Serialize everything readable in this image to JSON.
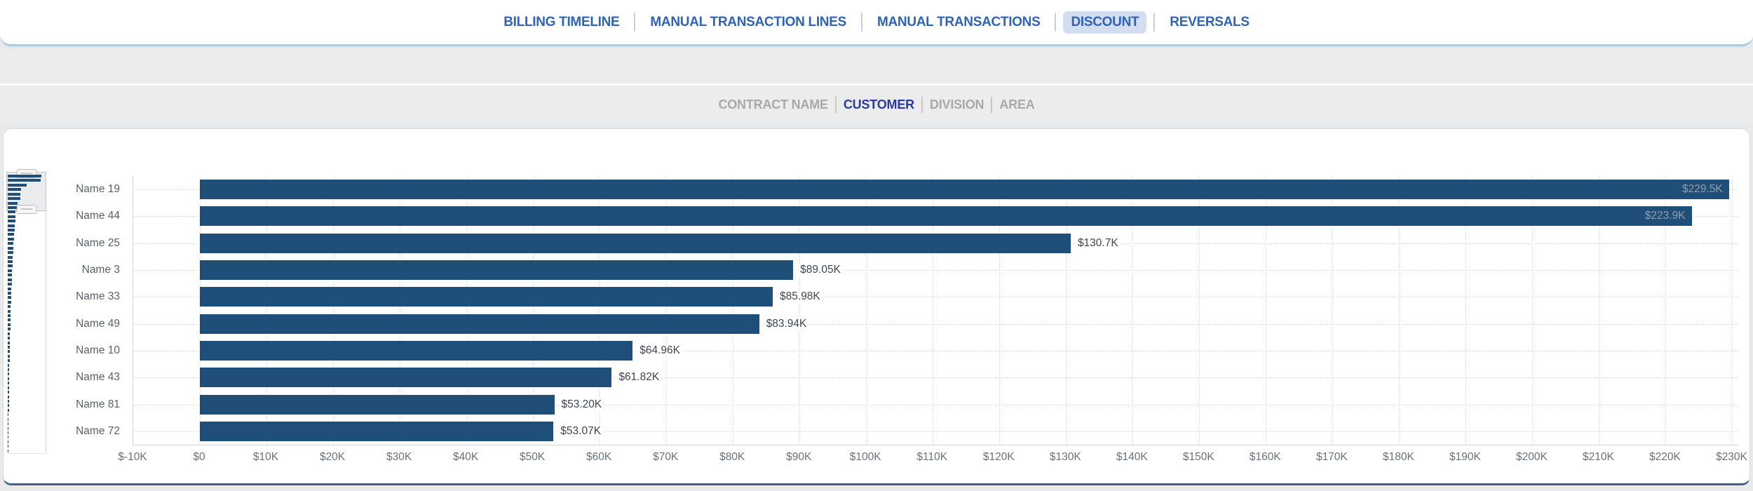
{
  "nav": {
    "items": [
      {
        "label": "BILLING TIMELINE",
        "active": false
      },
      {
        "label": "MANUAL TRANSACTION LINES",
        "active": false
      },
      {
        "label": "MANUAL TRANSACTIONS",
        "active": false
      },
      {
        "label": "DISCOUNT",
        "active": true
      },
      {
        "label": "REVERSALS",
        "active": false
      }
    ],
    "text_color": "#2f63b4",
    "active_bg": "#d3ddf2"
  },
  "toolbar": {
    "items": [
      {
        "label": "CONTRACT NAME",
        "active": false
      },
      {
        "label": "CUSTOMER",
        "active": true
      },
      {
        "label": "DIVISION",
        "active": false
      },
      {
        "label": "AREA",
        "active": false
      }
    ],
    "active_color": "#2b3a9e",
    "inactive_color": "#a9a9ab"
  },
  "chart_data": {
    "type": "bar",
    "orientation": "horizontal",
    "categories": [
      "Name 19",
      "Name 44",
      "Name 25",
      "Name 3",
      "Name 33",
      "Name 49",
      "Name 10",
      "Name 43",
      "Name 81",
      "Name 72"
    ],
    "values": [
      229500,
      223900,
      130700,
      89050,
      85980,
      83940,
      64960,
      61820,
      53200,
      53070
    ],
    "value_labels": [
      "$229.5K",
      "$223.9K",
      "$130.7K",
      "$89.05K",
      "$85.98K",
      "$83.94K",
      "$64.96K",
      "$61.82K",
      "$53.20K",
      "$53.07K"
    ],
    "label_inside": [
      true,
      true,
      false,
      false,
      false,
      false,
      false,
      false,
      false,
      false
    ],
    "xlim": [
      -10000,
      231000
    ],
    "x_tick_values": [
      -10000,
      0,
      10000,
      20000,
      30000,
      40000,
      50000,
      60000,
      70000,
      80000,
      90000,
      100000,
      110000,
      120000,
      130000,
      140000,
      150000,
      160000,
      170000,
      180000,
      190000,
      200000,
      210000,
      220000,
      230000
    ],
    "x_tick_labels": [
      "$-10K",
      "$0",
      "$10K",
      "$20K",
      "$30K",
      "$40K",
      "$50K",
      "$60K",
      "$70K",
      "$80K",
      "$90K",
      "$100K",
      "$110K",
      "$120K",
      "$130K",
      "$140K",
      "$150K",
      "$160K",
      "$170K",
      "$180K",
      "$190K",
      "$200K",
      "$210K",
      "$220K",
      "$230K"
    ],
    "grid": "dotted",
    "bar_color": "#1f4e79",
    "minimap_relative_widths": [
      100,
      97.5,
      57,
      38.8,
      37.5,
      36.6,
      28.3,
      26.9,
      23.2,
      23.1,
      22.0,
      21.0,
      20.1,
      19.2,
      18.3,
      17.5,
      16.7,
      16.0,
      15.2,
      14.6,
      13.9,
      13.3,
      12.7,
      12.1,
      11.6,
      11.1,
      10.6,
      10.1,
      9.6,
      9.2,
      8.8,
      8.4,
      8.0,
      7.7,
      7.3,
      7.0,
      6.7,
      6.4,
      6.1,
      5.8,
      5.6,
      5.3,
      5.1,
      4.9,
      4.6,
      4.4,
      4.2,
      4.0,
      3.9,
      3.7,
      3.5,
      3.4,
      3.2,
      3.1,
      2.9,
      2.8,
      2.7,
      2.6,
      2.4,
      2.3,
      2.2,
      2.1
    ]
  }
}
